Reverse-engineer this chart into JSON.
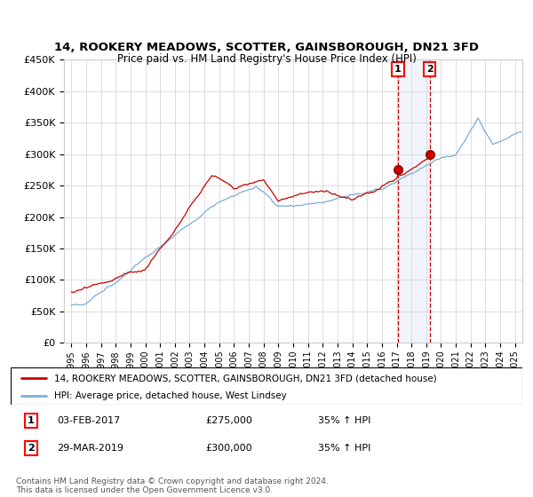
{
  "title": "14, ROOKERY MEADOWS, SCOTTER, GAINSBOROUGH, DN21 3FD",
  "subtitle": "Price paid vs. HM Land Registry's House Price Index (HPI)",
  "legend_line1": "14, ROOKERY MEADOWS, SCOTTER, GAINSBOROUGH, DN21 3FD (detached house)",
  "legend_line2": "HPI: Average price, detached house, West Lindsey",
  "annotation1_date": "03-FEB-2017",
  "annotation1_price": "£275,000",
  "annotation1_hpi": "35% ↑ HPI",
  "annotation2_date": "29-MAR-2019",
  "annotation2_price": "£300,000",
  "annotation2_hpi": "35% ↑ HPI",
  "footer": "Contains HM Land Registry data © Crown copyright and database right 2024.\nThis data is licensed under the Open Government Licence v3.0.",
  "red_color": "#cc0000",
  "blue_color": "#7aaed4",
  "shade_color": "#c8d8f0",
  "sale1_year": 2017.08,
  "sale1_price": 275000,
  "sale2_year": 2019.24,
  "sale2_price": 300000,
  "ylim_min": 0,
  "ylim_max": 450000,
  "xlim_min": 1994.5,
  "xlim_max": 2025.5
}
